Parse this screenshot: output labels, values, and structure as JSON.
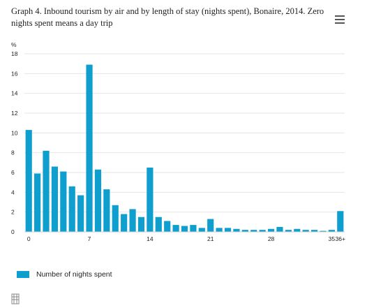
{
  "page": {
    "title": "Graph 4. Inbound tourism by air and by length of stay (nights spent), Bonaire, 2014. Zero nights spent means a day trip",
    "menu_icon": "hamburger-menu-icon",
    "footer_icon": "cbs-logo-icon"
  },
  "chart_data": {
    "type": "bar",
    "title": "Graph 4. Inbound tourism by air and by length of stay (nights spent), Bonaire, 2014. Zero nights spent means a day trip",
    "ylabel": "%",
    "xlabel": "",
    "ylim": [
      0,
      18
    ],
    "yticks": [
      0,
      2,
      4,
      6,
      8,
      10,
      12,
      14,
      16,
      18
    ],
    "grid": true,
    "legend_position": "bottom-left",
    "color": "#0f9fcf",
    "categories": [
      "0",
      "1",
      "2",
      "3",
      "4",
      "5",
      "6",
      "7",
      "8",
      "9",
      "10",
      "11",
      "12",
      "13",
      "14",
      "15",
      "16",
      "17",
      "18",
      "19",
      "20",
      "21",
      "22",
      "23",
      "24",
      "25",
      "26",
      "27",
      "28",
      "29",
      "30",
      "31",
      "32",
      "33",
      "34",
      "35",
      "36+"
    ],
    "xtick_labels": [
      {
        "category": "0",
        "label": "0"
      },
      {
        "category": "7",
        "label": "7"
      },
      {
        "category": "14",
        "label": "14"
      },
      {
        "category": "21",
        "label": "21"
      },
      {
        "category": "28",
        "label": "28"
      },
      {
        "category": "35",
        "label": "35"
      },
      {
        "category": "36+",
        "label": "36+"
      }
    ],
    "series": [
      {
        "name": "Number of nights spent",
        "values": [
          10.3,
          5.9,
          8.2,
          6.6,
          6.1,
          4.6,
          3.7,
          16.9,
          6.3,
          4.3,
          2.7,
          1.8,
          2.3,
          1.5,
          6.5,
          1.5,
          1.1,
          0.7,
          0.6,
          0.7,
          0.4,
          1.3,
          0.4,
          0.4,
          0.3,
          0.2,
          0.2,
          0.2,
          0.3,
          0.5,
          0.2,
          0.3,
          0.2,
          0.2,
          0.1,
          0.2,
          2.1
        ]
      }
    ]
  }
}
